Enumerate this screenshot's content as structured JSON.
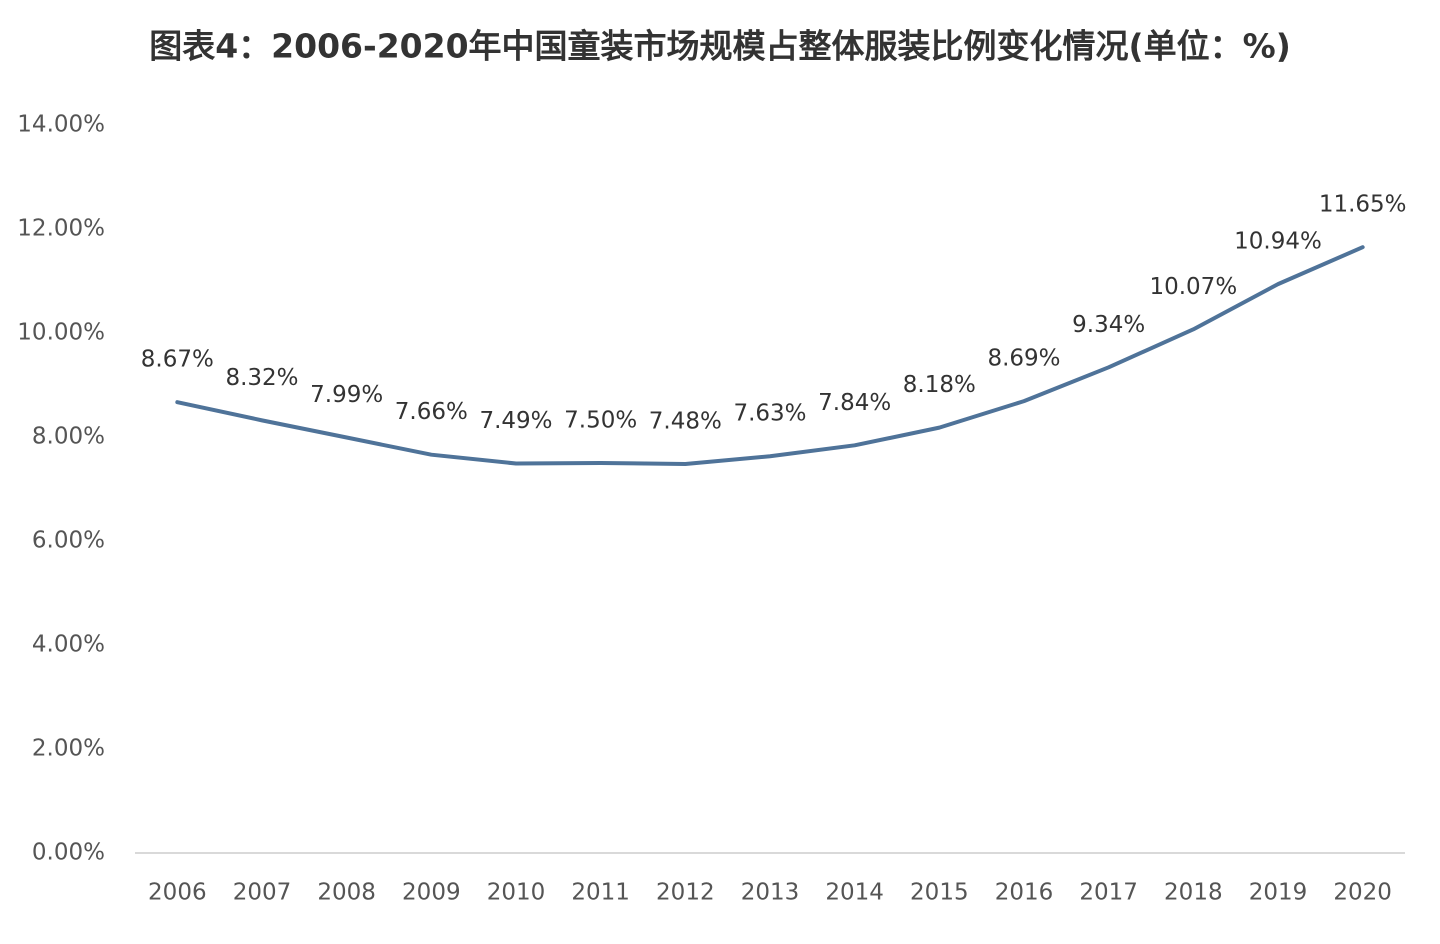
{
  "chart_data": {
    "type": "line",
    "title": "图表4：2006-2020年中国童装市场规模占整体服装比例变化情况(单位：%)",
    "categories": [
      "2006",
      "2007",
      "2008",
      "2009",
      "2010",
      "2011",
      "2012",
      "2013",
      "2014",
      "2015",
      "2016",
      "2017",
      "2018",
      "2019",
      "2020"
    ],
    "series": [
      {
        "color": "#4f7399",
        "values": [
          8.67,
          8.32,
          7.99,
          7.66,
          7.49,
          7.5,
          7.48,
          7.63,
          7.84,
          8.18,
          8.69,
          9.34,
          10.07,
          10.94,
          11.65
        ],
        "value_labels": [
          "8.67%",
          "8.32%",
          "7.99%",
          "7.66%",
          "7.49%",
          "7.50%",
          "7.48%",
          "7.63%",
          "7.84%",
          "8.18%",
          "8.69%",
          "9.34%",
          "10.07%",
          "10.94%",
          "11.65%"
        ]
      }
    ],
    "ylim": [
      0,
      14
    ],
    "yticks": [
      {
        "value": 0,
        "label": "0.00%"
      },
      {
        "value": 2,
        "label": "2.00%"
      },
      {
        "value": 4,
        "label": "4.00%"
      },
      {
        "value": 6,
        "label": "6.00%"
      },
      {
        "value": 8,
        "label": "8.00%"
      },
      {
        "value": 10,
        "label": "10.00%"
      },
      {
        "value": 12,
        "label": "12.00%"
      },
      {
        "value": 14,
        "label": "14.00%"
      }
    ],
    "grid": false
  }
}
